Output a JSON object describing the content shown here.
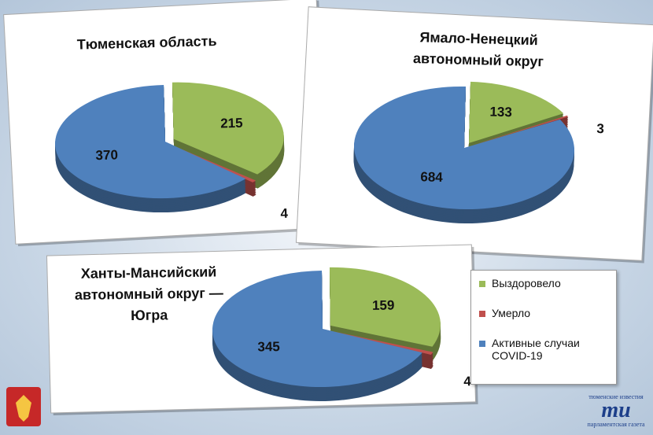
{
  "chart_data": [
    {
      "type": "pie",
      "title": [
        "Тюменская область"
      ],
      "values": [
        215,
        4,
        370
      ]
    },
    {
      "type": "pie",
      "title": [
        "Ямало-Ненецкий",
        "автономный округ"
      ],
      "values": [
        133,
        3,
        684
      ]
    },
    {
      "type": "pie",
      "title": [
        "Ханты-Мансийский",
        "автономный округ —",
        "Югра"
      ],
      "values": [
        159,
        4,
        345
      ]
    }
  ],
  "legend": [
    {
      "label": "Выздоровело",
      "color": "#9bbb59"
    },
    {
      "label": "Умерло",
      "color": "#c0504d"
    },
    {
      "label": "Активные случаи COVID-19",
      "color": "#4f81bd"
    }
  ],
  "logo": {
    "top": "тюменские известия",
    "bottom": "парламентская газета"
  }
}
